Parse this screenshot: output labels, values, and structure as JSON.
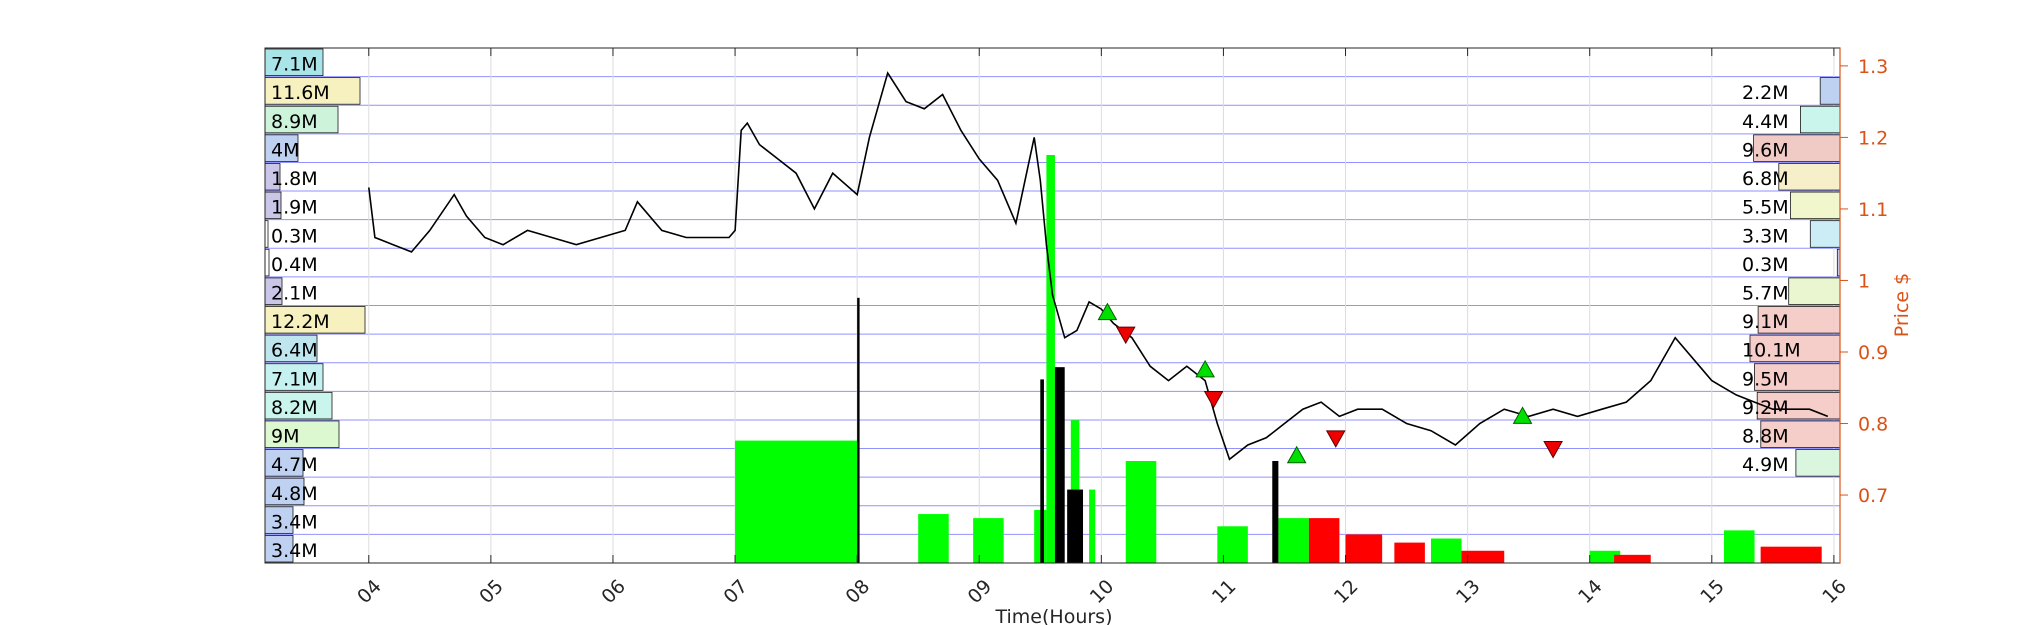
{
  "chart_data": {
    "type": "line",
    "xlabel": "Time(Hours)",
    "ylabel": "Price $",
    "x_ticks": [
      "04",
      "05",
      "06",
      "07",
      "08",
      "09",
      "10",
      "11",
      "12",
      "13",
      "14",
      "15",
      "16"
    ],
    "xlim": [
      3.15,
      16.05
    ],
    "y_right_ticks": [
      "0.7",
      "0.8",
      "0.9",
      "1",
      "1.1",
      "1.2",
      "1.3"
    ],
    "ylim": [
      0.605,
      1.325
    ],
    "grid": true,
    "colors": {
      "price_line": "#000000",
      "axis_right": "#D95319",
      "volume_buy": "#00ff00",
      "volume_sell": "#ff0000",
      "volume_neutral": "#000000",
      "grid": "#8080ff"
    },
    "price_series": {
      "name": "",
      "x": [
        4.0,
        4.05,
        4.2,
        4.35,
        4.5,
        4.7,
        4.8,
        4.95,
        5.1,
        5.3,
        5.5,
        5.7,
        5.9,
        6.1,
        6.2,
        6.4,
        6.6,
        6.8,
        6.95,
        7.0,
        7.05,
        7.1,
        7.2,
        7.35,
        7.5,
        7.65,
        7.8,
        8.0,
        8.1,
        8.25,
        8.4,
        8.55,
        8.7,
        8.85,
        9.0,
        9.15,
        9.3,
        9.45,
        9.5,
        9.55,
        9.6,
        9.65,
        9.7,
        9.8,
        9.9,
        10.0,
        10.1,
        10.25,
        10.4,
        10.55,
        10.7,
        10.85,
        10.95,
        11.05,
        11.2,
        11.35,
        11.5,
        11.65,
        11.8,
        11.95,
        12.1,
        12.3,
        12.5,
        12.7,
        12.9,
        13.1,
        13.3,
        13.5,
        13.7,
        13.9,
        14.1,
        14.3,
        14.5,
        14.7,
        14.9,
        15.0,
        15.1,
        15.2,
        15.35,
        15.5,
        15.65,
        15.8,
        15.95
      ],
      "y": [
        1.13,
        1.06,
        1.05,
        1.04,
        1.07,
        1.12,
        1.09,
        1.06,
        1.05,
        1.07,
        1.06,
        1.05,
        1.06,
        1.07,
        1.11,
        1.07,
        1.06,
        1.06,
        1.06,
        1.07,
        1.21,
        1.22,
        1.19,
        1.17,
        1.15,
        1.1,
        1.15,
        1.12,
        1.2,
        1.29,
        1.25,
        1.24,
        1.26,
        1.21,
        1.17,
        1.14,
        1.08,
        1.2,
        1.14,
        1.05,
        0.98,
        0.95,
        0.92,
        0.93,
        0.97,
        0.96,
        0.94,
        0.92,
        0.88,
        0.86,
        0.88,
        0.86,
        0.8,
        0.75,
        0.77,
        0.78,
        0.8,
        0.82,
        0.83,
        0.81,
        0.82,
        0.82,
        0.8,
        0.79,
        0.77,
        0.8,
        0.82,
        0.81,
        0.82,
        0.81,
        0.82,
        0.83,
        0.86,
        0.92,
        0.88,
        0.86,
        0.85,
        0.84,
        0.83,
        0.82,
        0.82,
        0.82,
        0.81
      ]
    },
    "buy_markers": [
      {
        "x": 10.05,
        "y": 0.955
      },
      {
        "x": 10.85,
        "y": 0.875
      },
      {
        "x": 11.6,
        "y": 0.755
      },
      {
        "x": 13.45,
        "y": 0.81
      }
    ],
    "sell_markers": [
      {
        "x": 10.2,
        "y": 0.925
      },
      {
        "x": 10.92,
        "y": 0.835
      },
      {
        "x": 11.92,
        "y": 0.78
      },
      {
        "x": 13.7,
        "y": 0.765
      }
    ],
    "volume_bars": [
      {
        "x0": 7.0,
        "x1": 8.0,
        "v": 0.3,
        "color": "buy"
      },
      {
        "x0": 8.5,
        "x1": 8.75,
        "v": 0.12,
        "color": "buy"
      },
      {
        "x0": 8.95,
        "x1": 9.2,
        "v": 0.11,
        "color": "buy"
      },
      {
        "x0": 9.45,
        "x1": 9.55,
        "v": 0.13,
        "color": "buy"
      },
      {
        "x0": 9.55,
        "x1": 9.62,
        "v": 1.0,
        "color": "buy"
      },
      {
        "x0": 9.75,
        "x1": 9.82,
        "v": 0.35,
        "color": "buy"
      },
      {
        "x0": 9.9,
        "x1": 9.95,
        "v": 0.18,
        "color": "buy"
      },
      {
        "x0": 10.2,
        "x1": 10.45,
        "v": 0.25,
        "color": "buy"
      },
      {
        "x0": 10.95,
        "x1": 11.2,
        "v": 0.09,
        "color": "buy"
      },
      {
        "x0": 11.45,
        "x1": 11.7,
        "v": 0.11,
        "color": "buy"
      },
      {
        "x0": 11.7,
        "x1": 11.95,
        "v": 0.11,
        "color": "sell"
      },
      {
        "x0": 12.0,
        "x1": 12.3,
        "v": 0.07,
        "color": "sell"
      },
      {
        "x0": 12.4,
        "x1": 12.65,
        "v": 0.05,
        "color": "sell"
      },
      {
        "x0": 12.7,
        "x1": 12.95,
        "v": 0.06,
        "color": "buy"
      },
      {
        "x0": 12.95,
        "x1": 13.3,
        "v": 0.03,
        "color": "sell"
      },
      {
        "x0": 14.0,
        "x1": 14.25,
        "v": 0.03,
        "color": "buy"
      },
      {
        "x0": 14.2,
        "x1": 14.5,
        "v": 0.02,
        "color": "sell"
      },
      {
        "x0": 15.1,
        "x1": 15.35,
        "v": 0.08,
        "color": "buy"
      },
      {
        "x0": 15.4,
        "x1": 15.9,
        "v": 0.04,
        "color": "sell"
      },
      {
        "x0": 8.0,
        "x1": 8.02,
        "v": 0.65,
        "color": "neutral"
      },
      {
        "x0": 9.5,
        "x1": 9.53,
        "v": 0.45,
        "color": "neutral"
      },
      {
        "x0": 9.62,
        "x1": 9.7,
        "v": 0.48,
        "color": "neutral"
      },
      {
        "x0": 9.72,
        "x1": 9.85,
        "v": 0.18,
        "color": "neutral"
      },
      {
        "x0": 11.4,
        "x1": 11.45,
        "v": 0.25,
        "color": "neutral"
      }
    ],
    "volume_profile_left": [
      {
        "label": "7.1M",
        "color": "#9fe2e6",
        "len": 0.58
      },
      {
        "label": "11.6M",
        "color": "#f6f0b8",
        "len": 0.95
      },
      {
        "label": "8.9M",
        "color": "#c8f2d6",
        "len": 0.73
      },
      {
        "label": "4M",
        "color": "#b9cdf0",
        "len": 0.33
      },
      {
        "label": "1.8M",
        "color": "#c4c0e6",
        "len": 0.15
      },
      {
        "label": "1.9M",
        "color": "#c4c0e6",
        "len": 0.16
      },
      {
        "label": "0.3M",
        "color": "#ffffff",
        "len": 0.03
      },
      {
        "label": "0.4M",
        "color": "#ffffff",
        "len": 0.04
      },
      {
        "label": "2.1M",
        "color": "#c4c0e6",
        "len": 0.17
      },
      {
        "label": "12.2M",
        "color": "#f6f0b8",
        "len": 1.0
      },
      {
        "label": "6.4M",
        "color": "#b9e3ee",
        "len": 0.52
      },
      {
        "label": "7.1M",
        "color": "#bff0f0",
        "len": 0.58
      },
      {
        "label": "8.2M",
        "color": "#c4f4ec",
        "len": 0.67
      },
      {
        "label": "9M",
        "color": "#d8f8cc",
        "len": 0.74
      },
      {
        "label": "4.7M",
        "color": "#b9cdf0",
        "len": 0.38
      },
      {
        "label": "4.8M",
        "color": "#b9cdf0",
        "len": 0.39
      },
      {
        "label": "3.4M",
        "color": "#b9cdf0",
        "len": 0.28
      },
      {
        "label": "3.4M",
        "color": "#b9cdf0",
        "len": 0.28
      }
    ],
    "volume_profile_right": [
      {
        "label": "2.2M",
        "color": "#b9cdf0",
        "len": 0.22
      },
      {
        "label": "4.4M",
        "color": "#c4f4ec",
        "len": 0.44
      },
      {
        "label": "9.6M",
        "color": "#efc6c0",
        "len": 0.96
      },
      {
        "label": "6.8M",
        "color": "#f6eec4",
        "len": 0.68
      },
      {
        "label": "5.5M",
        "color": "#f0f6c8",
        "len": 0.55
      },
      {
        "label": "3.3M",
        "color": "#c8ecf6",
        "len": 0.33
      },
      {
        "label": "0.3M",
        "color": "#c4c0e6",
        "len": 0.03
      },
      {
        "label": "5.7M",
        "color": "#e8f6cc",
        "len": 0.57
      },
      {
        "label": "9.1M",
        "color": "#f4c8c4",
        "len": 0.91
      },
      {
        "label": "10.1M",
        "color": "#f4c8c4",
        "len": 1.0
      },
      {
        "label": "9.5M",
        "color": "#f4c8c4",
        "len": 0.95
      },
      {
        "label": "9.2M",
        "color": "#f4c8c4",
        "len": 0.92
      },
      {
        "label": "8.8M",
        "color": "#f4c8c4",
        "len": 0.88
      },
      {
        "label": "4.9M",
        "color": "#d6f6dc",
        "len": 0.49
      }
    ]
  }
}
